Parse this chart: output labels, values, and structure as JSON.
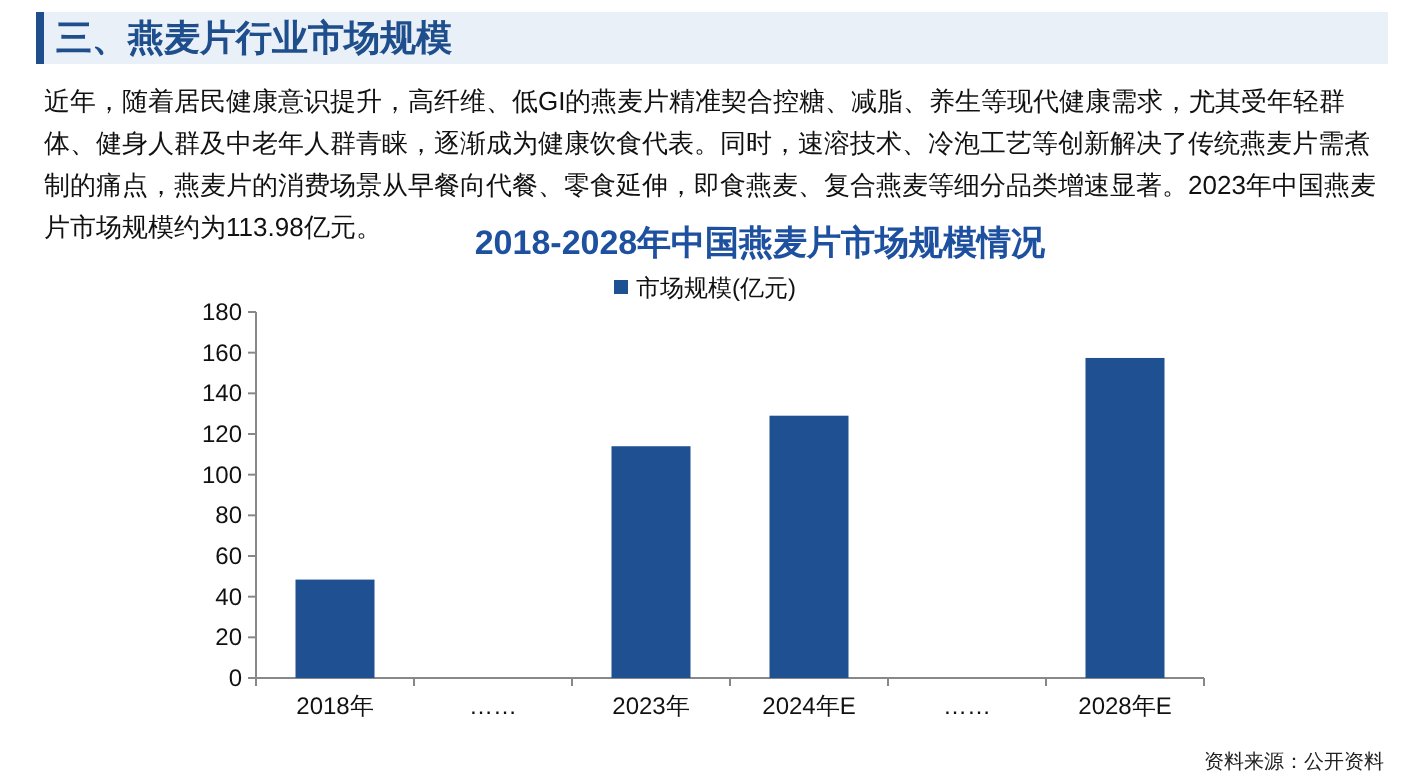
{
  "chart_data": {
    "type": "bar",
    "title": "2018-2028年中国燕麦片市场规模情况",
    "categories": [
      "2018年",
      "……",
      "2023年",
      "2024年E",
      "……",
      "2028年E"
    ],
    "series": [
      {
        "name": "市场规模(亿元)",
        "color": "#1f5192",
        "values": [
          48.4,
          null,
          113.98,
          129,
          null,
          157.4
        ]
      }
    ],
    "ylim": [
      0,
      180
    ],
    "yticks": [
      0,
      20,
      40,
      60,
      80,
      100,
      120,
      140,
      160,
      180
    ],
    "grid": false,
    "legend": "top",
    "annotations": [
      "三、燕麦片行业市场规模",
      "近年，随着居民健康意识提升，高纤维、低GI的燕麦片精准契合控糖、减脂、养生等现代健康需求，尤其受年轻群体、健身人群及中老年人群青睐，逐渐成为健康饮食代表。同时，速溶技术、冷泡工艺等创新解决了传统燕麦片需煮制的痛点，燕麦片的消费场景从早餐向代餐、零食延伸，即食燕麦、复合燕麦等细分品类增速显著。2023年中国燕麦片市场规模约为113.98亿元。",
      "资料来源：公开资料"
    ]
  }
}
